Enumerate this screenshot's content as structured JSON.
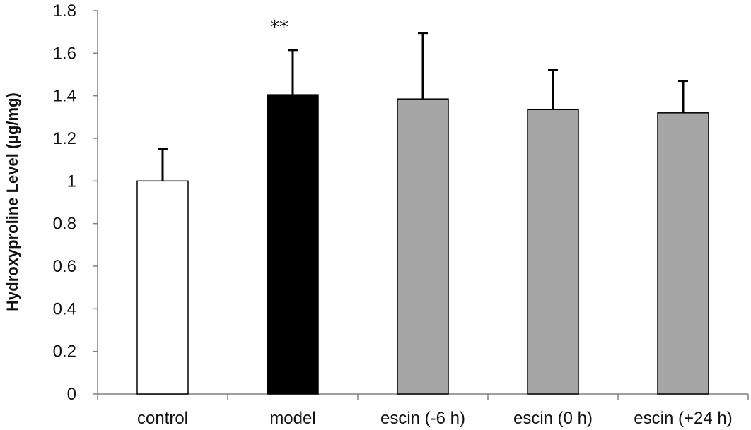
{
  "chart_data": {
    "type": "bar",
    "title": "",
    "xlabel": "",
    "ylabel": "Hydroxyproline Level (µg/mg)",
    "ylim": [
      0,
      1.8
    ],
    "yticks": [
      "0",
      "0.2",
      "0.4",
      "0.6",
      "0.8",
      "1",
      "1.2",
      "1.4",
      "1.6",
      "1.8"
    ],
    "grid": false,
    "legend": "none",
    "categories": [
      "control",
      "model",
      "escin (-6 h)",
      "escin (0 h)",
      "escin (+24 h)"
    ],
    "values": [
      1.0,
      1.405,
      1.385,
      1.335,
      1.32
    ],
    "errors": [
      0.15,
      0.21,
      0.31,
      0.185,
      0.15
    ],
    "bar_colors": [
      "#ffffff",
      "#000000",
      "#a6a6a6",
      "#a6a6a6",
      "#a6a6a6"
    ],
    "annotations": [
      {
        "category": "model",
        "text": "**"
      }
    ]
  }
}
